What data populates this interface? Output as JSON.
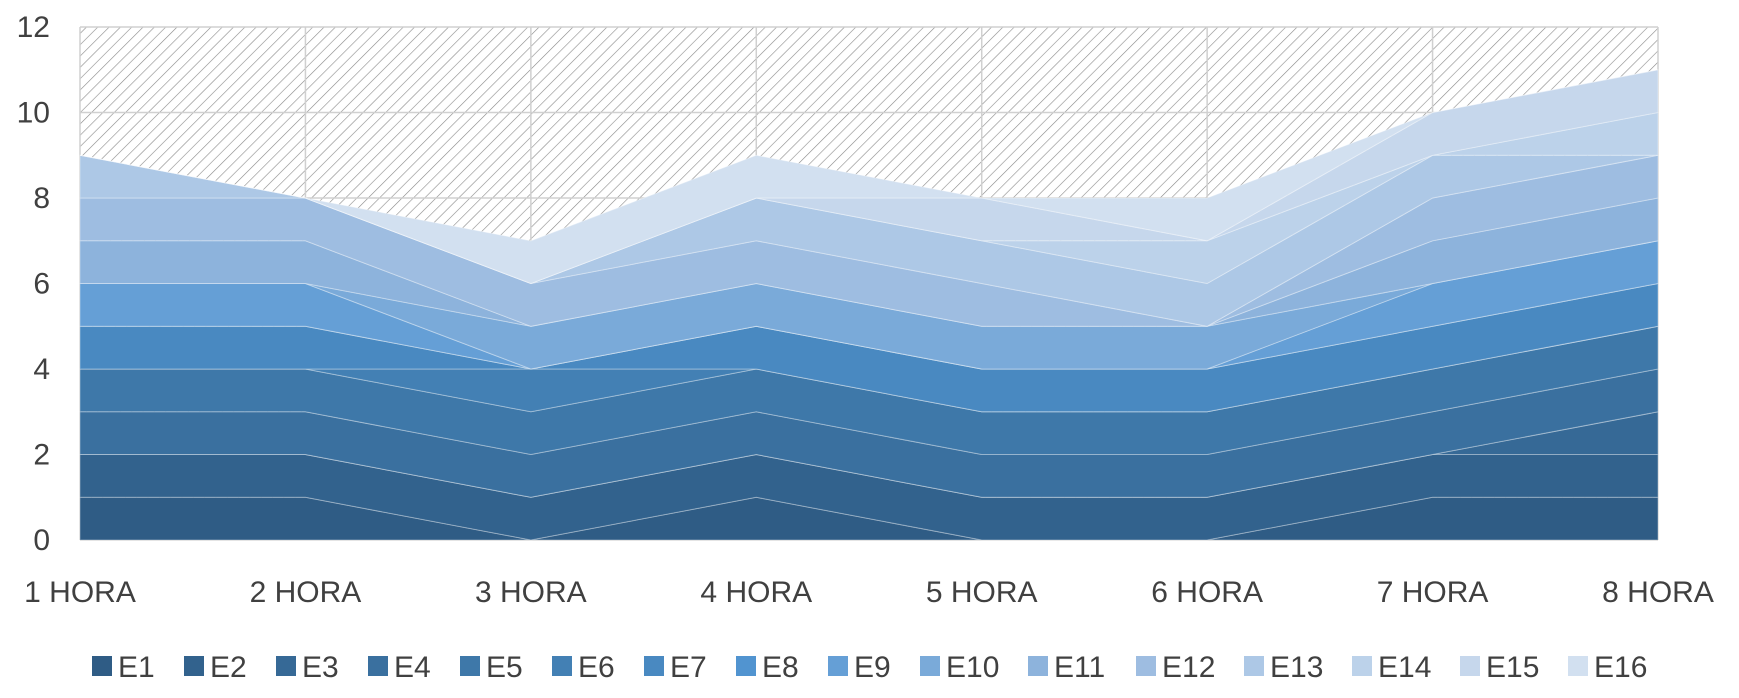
{
  "chart_data": {
    "type": "area",
    "stacked": true,
    "categories": [
      "1 HORA",
      "2 HORA",
      "3 HORA",
      "4 HORA",
      "5 HORA",
      "6 HORA",
      "7 HORA",
      "8 HORA"
    ],
    "ylim": [
      0,
      12
    ],
    "yticks": [
      0,
      2,
      4,
      6,
      8,
      10,
      12
    ],
    "grid": true,
    "background_pattern": "diagonal-hatch",
    "legend_position": "bottom",
    "series": [
      {
        "name": "E1",
        "color": "#2f5c85",
        "values": [
          1,
          1,
          0,
          1,
          0,
          0,
          1,
          1
        ]
      },
      {
        "name": "E2",
        "color": "#32628d",
        "values": [
          1,
          1,
          1,
          1,
          1,
          1,
          1,
          1
        ]
      },
      {
        "name": "E3",
        "color": "#366996",
        "values": [
          0,
          0,
          0,
          0,
          0,
          0,
          0,
          1
        ]
      },
      {
        "name": "E4",
        "color": "#3a709f",
        "values": [
          1,
          1,
          1,
          1,
          1,
          1,
          1,
          1
        ]
      },
      {
        "name": "E5",
        "color": "#3e78a9",
        "values": [
          1,
          1,
          1,
          1,
          1,
          1,
          1,
          1
        ]
      },
      {
        "name": "E6",
        "color": "#4380b4",
        "values": [
          0,
          0,
          1,
          0,
          0,
          0,
          0,
          0
        ]
      },
      {
        "name": "E7",
        "color": "#4989c1",
        "values": [
          1,
          1,
          0,
          1,
          1,
          1,
          1,
          1
        ]
      },
      {
        "name": "E8",
        "color": "#5194d0",
        "values": [
          0,
          0,
          0,
          0,
          0,
          0,
          0,
          0
        ]
      },
      {
        "name": "E9",
        "color": "#659fd6",
        "values": [
          1,
          1,
          0,
          0,
          0,
          0,
          1,
          1
        ]
      },
      {
        "name": "E10",
        "color": "#7aaad9",
        "values": [
          0,
          0,
          1,
          1,
          1,
          1,
          0,
          0
        ]
      },
      {
        "name": "E11",
        "color": "#8db3dc",
        "values": [
          1,
          1,
          0,
          0,
          0,
          0,
          1,
          1
        ]
      },
      {
        "name": "E12",
        "color": "#9ebde1",
        "values": [
          1,
          1,
          1,
          1,
          1,
          0,
          1,
          1
        ]
      },
      {
        "name": "E13",
        "color": "#adc8e6",
        "values": [
          1,
          0,
          0,
          1,
          1,
          1,
          1,
          0
        ]
      },
      {
        "name": "E14",
        "color": "#bcd2ea",
        "values": [
          0,
          0,
          0,
          0,
          0,
          1,
          0,
          1
        ]
      },
      {
        "name": "E15",
        "color": "#c6d7ec",
        "values": [
          0,
          0,
          0,
          0,
          1,
          0,
          1,
          1
        ]
      },
      {
        "name": "E16",
        "color": "#d2e0f0",
        "values": [
          0,
          0,
          1,
          1,
          0,
          1,
          0,
          0
        ]
      }
    ]
  }
}
